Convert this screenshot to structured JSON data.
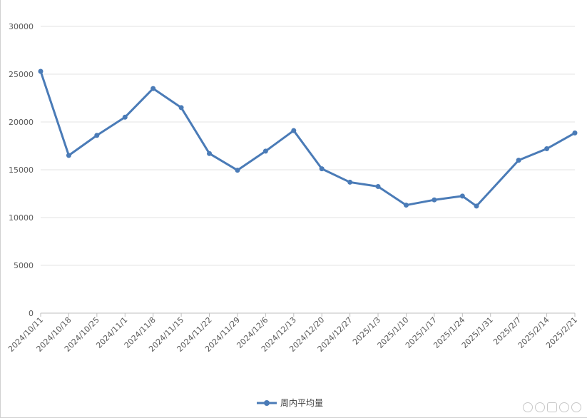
{
  "chart_data": {
    "type": "line",
    "categories": [
      "2024/10/11",
      "2024/10/18",
      "2024/10/25",
      "2024/11/1",
      "2024/11/8",
      "2024/11/15",
      "2024/11/22",
      "2024/11/29",
      "2024/12/6",
      "2024/12/13",
      "2024/12/20",
      "2024/12/27",
      "2025/1/3",
      "2025/1/10",
      "2025/1/17",
      "2025/1/24",
      "2025/1/31",
      "2025/2/7",
      "2025/2/14",
      "2025/2/21"
    ],
    "series": [
      {
        "name": "周内平均量",
        "color": "#4a7bb7",
        "points": [
          {
            "x": 0,
            "y": 25300
          },
          {
            "x": 1,
            "y": 16500
          },
          {
            "x": 2,
            "y": 18600
          },
          {
            "x": 3,
            "y": 20500
          },
          {
            "x": 4,
            "y": 23500
          },
          {
            "x": 5,
            "y": 21500
          },
          {
            "x": 6,
            "y": 16700
          },
          {
            "x": 7,
            "y": 14950
          },
          {
            "x": 8,
            "y": 16950
          },
          {
            "x": 9,
            "y": 19100
          },
          {
            "x": 10,
            "y": 15100
          },
          {
            "x": 11,
            "y": 13700
          },
          {
            "x": 12,
            "y": 13250
          },
          {
            "x": 13,
            "y": 11300
          },
          {
            "x": 14,
            "y": 11850
          },
          {
            "x": 15,
            "y": 12250
          },
          {
            "x": 15.5,
            "y": 11200
          },
          {
            "x": 17,
            "y": 16000
          },
          {
            "x": 18,
            "y": 17200
          },
          {
            "x": 19,
            "y": 18850
          }
        ]
      }
    ],
    "yticks": [
      0,
      5000,
      10000,
      15000,
      20000,
      25000,
      30000
    ],
    "ylim": [
      0,
      30000
    ],
    "grid": true,
    "legend": "bottom"
  }
}
